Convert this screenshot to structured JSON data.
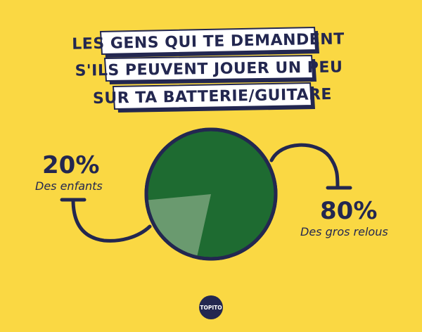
{
  "colors": {
    "background": "#fad843",
    "navy": "#232750",
    "green": "#1e6b31",
    "slice_light": "#6a9a6f",
    "white": "#ffffff"
  },
  "title": {
    "lines": [
      "LES GENS QUI TE DEMANDENT",
      "S'ILS PEUVENT JOUER UN PEU",
      "SUR TA BATTERIE/GUITARE"
    ]
  },
  "chart_data": {
    "type": "pie",
    "slices": [
      {
        "label": "Des enfants",
        "value": 20,
        "value_text": "20%",
        "color": "#6a9a6f"
      },
      {
        "label": "Des gros relous",
        "value": 80,
        "value_text": "80%",
        "color": "#1e6b31"
      }
    ],
    "legend": "callouts-left-right"
  },
  "logo": {
    "text": "TOPITO"
  }
}
